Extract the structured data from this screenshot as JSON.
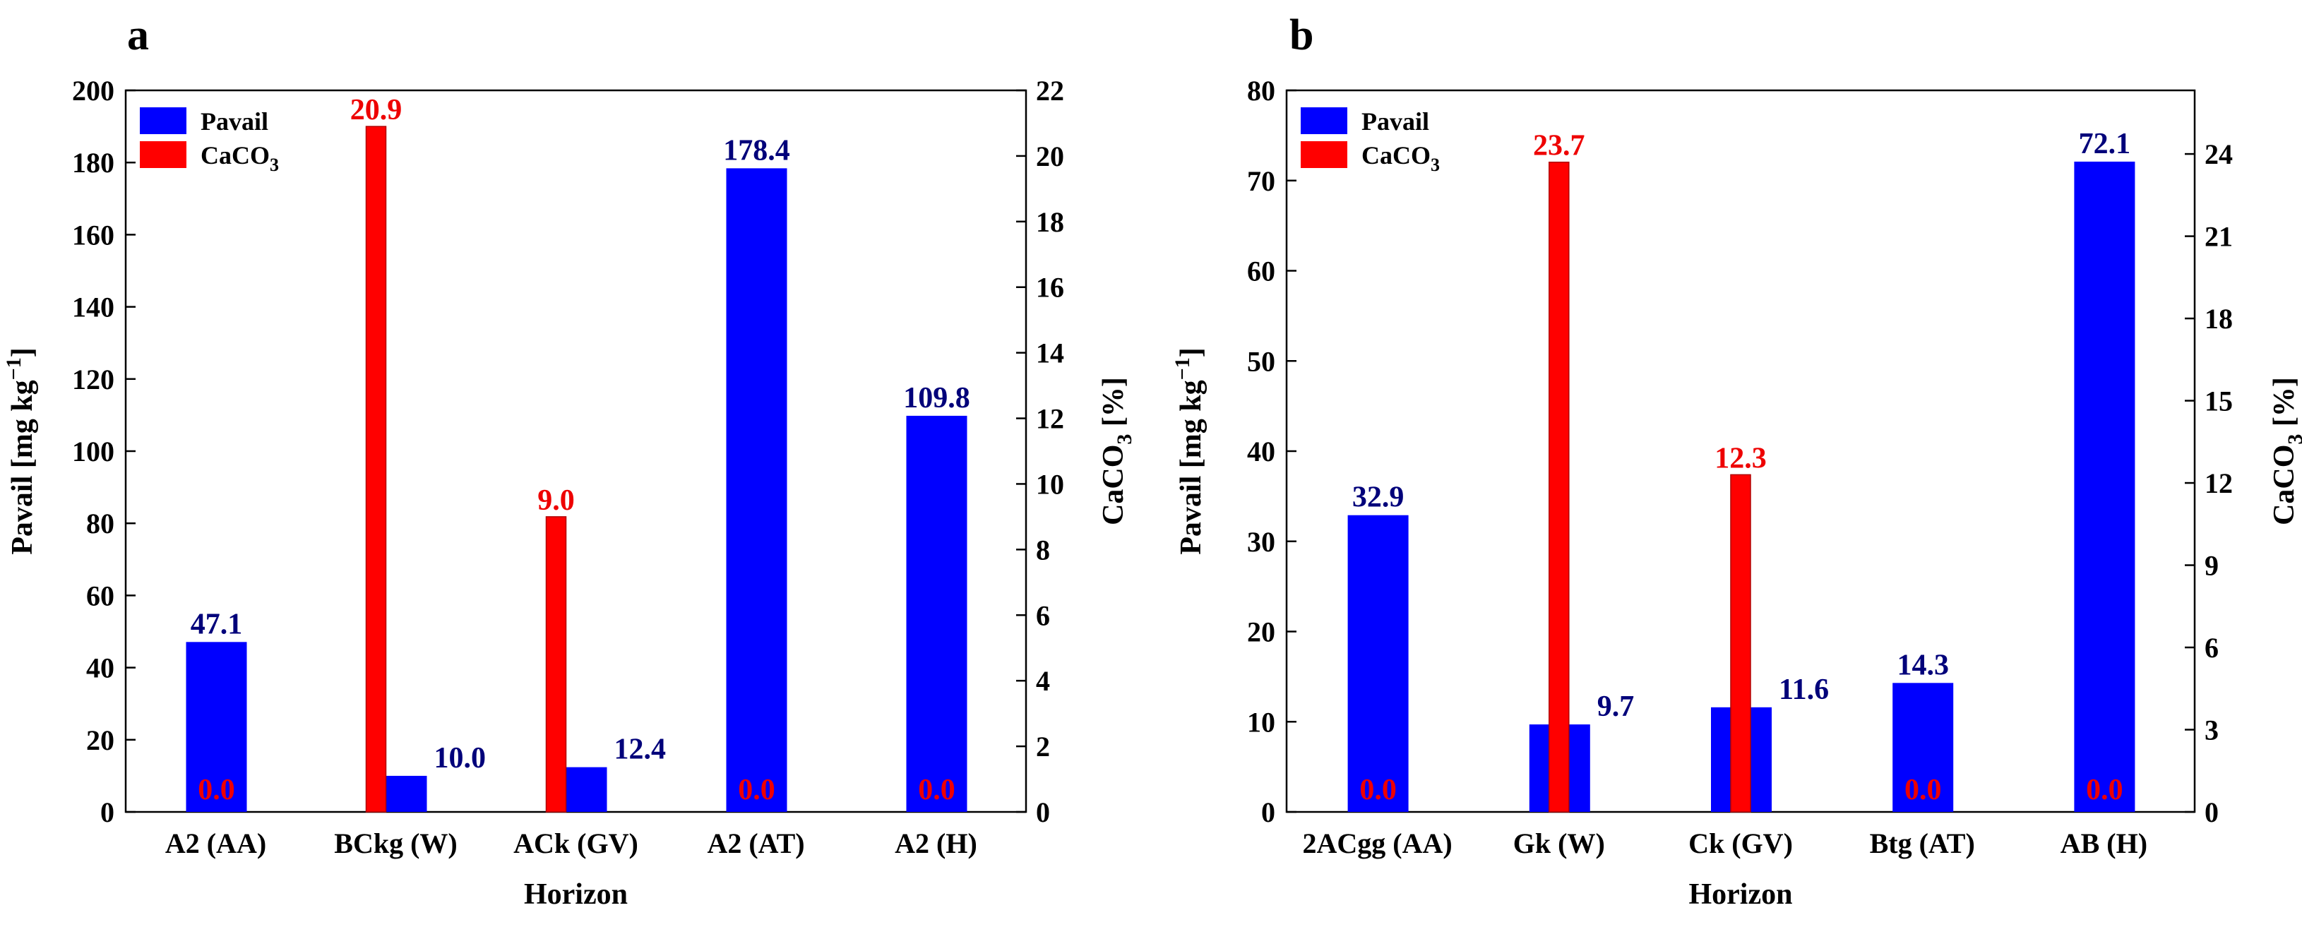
{
  "chart_data": [
    {
      "panel": "a",
      "type": "bar",
      "categories": [
        "A2 (AA)",
        "BCkg (W)",
        "ACk (GV)",
        "A2 (AT)",
        "A2 (H)"
      ],
      "series": [
        {
          "name": "Pavail",
          "axis": "left",
          "color": "#0000ff",
          "label_color": "#00007a",
          "values": [
            47.1,
            10.0,
            12.4,
            178.4,
            109.8
          ],
          "value_labels": [
            "47.1",
            "10.0",
            "12.4",
            "178.4",
            "109.8"
          ]
        },
        {
          "name": "CaCO3",
          "axis": "right",
          "color": "#ff0000",
          "label_color": "#ee0000",
          "values": [
            0.0,
            20.9,
            9.0,
            0.0,
            0.0
          ],
          "value_labels": [
            "0.0",
            "20.9",
            "9.0",
            "0.0",
            "0.0"
          ]
        }
      ],
      "xlabel": "Horizon",
      "ylabel": "Pavail [mg kg",
      "ylabel_superscript": "−1",
      "ylabel_close": "]",
      "y2label": "CaCO",
      "y2label_subscript": "3",
      "y2label_unit": " [%]",
      "ylim": [
        0,
        200
      ],
      "yticks": [
        0,
        20,
        40,
        60,
        80,
        100,
        120,
        140,
        160,
        180,
        200
      ],
      "y2lim": [
        0,
        22
      ],
      "y2ticks": [
        0,
        2,
        4,
        6,
        8,
        10,
        12,
        14,
        16,
        18,
        20,
        22
      ],
      "legend": {
        "position": "top-left",
        "entries": [
          {
            "label": "Pavail",
            "color": "#0000ff"
          },
          {
            "label": "CaCO",
            "subscript": "3",
            "color": "#ff0000"
          }
        ]
      },
      "grid": false
    },
    {
      "panel": "b",
      "type": "bar",
      "categories": [
        "2ACgg (AA)",
        "Gk (W)",
        "Ck (GV)",
        "Btg (AT)",
        "AB (H)"
      ],
      "series": [
        {
          "name": "Pavail",
          "axis": "left",
          "color": "#0000ff",
          "label_color": "#00007a",
          "values": [
            32.9,
            9.7,
            11.6,
            14.3,
            72.1
          ],
          "value_labels": [
            "32.9",
            "9.7",
            "11.6",
            "14.3",
            "72.1"
          ]
        },
        {
          "name": "CaCO3",
          "axis": "right",
          "color": "#ff0000",
          "label_color": "#ee0000",
          "values": [
            0.0,
            23.7,
            12.3,
            0.0,
            0.0
          ],
          "value_labels": [
            "0.0",
            "23.7",
            "12.3",
            "0.0",
            "0.0"
          ]
        }
      ],
      "xlabel": "Horizon",
      "ylabel": "Pavail [mg kg",
      "ylabel_superscript": "−1",
      "ylabel_close": "]",
      "y2label": "CaCO",
      "y2label_subscript": "3",
      "y2label_unit": " [%]",
      "ylim": [
        0,
        80
      ],
      "yticks": [
        0,
        10,
        20,
        30,
        40,
        50,
        60,
        70,
        80
      ],
      "y2lim": [
        0,
        26.32
      ],
      "y2ticks": [
        0,
        3,
        6,
        9,
        12,
        15,
        18,
        21,
        24
      ],
      "legend": {
        "position": "top-left",
        "entries": [
          {
            "label": "Pavail",
            "color": "#0000ff"
          },
          {
            "label": "CaCO",
            "subscript": "3",
            "color": "#ff0000"
          }
        ]
      },
      "grid": false
    }
  ]
}
